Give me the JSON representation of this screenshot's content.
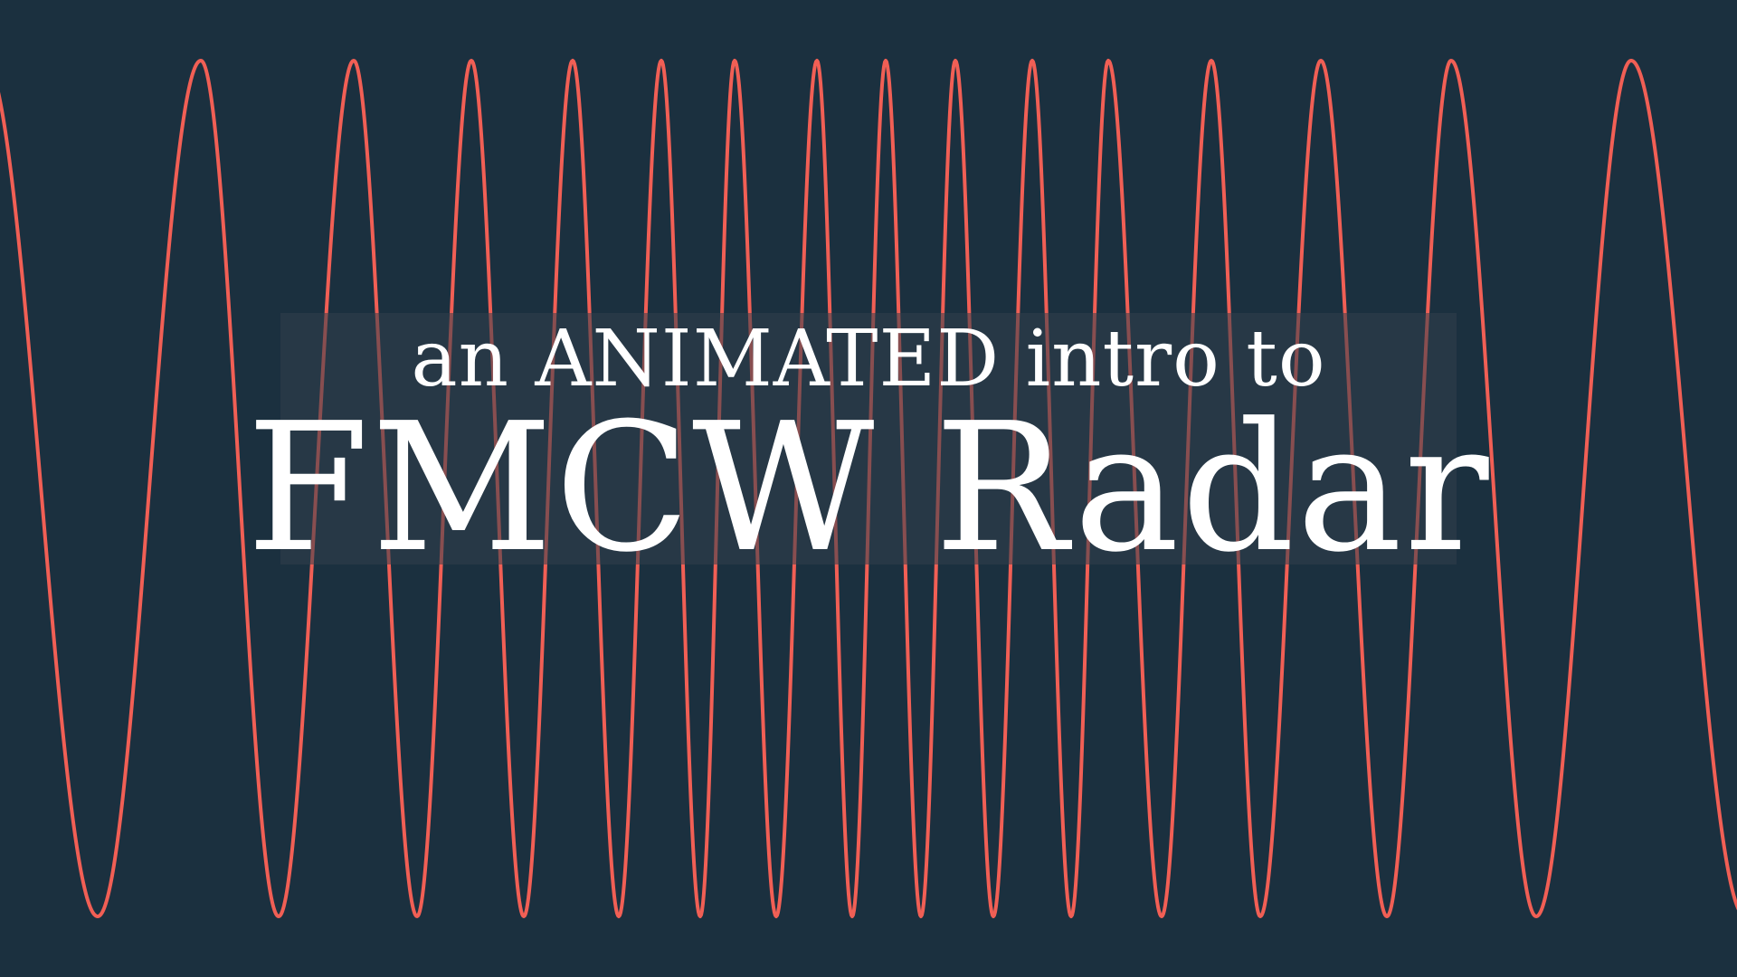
{
  "title": {
    "subtitle": "an ANIMATED intro to",
    "main": "FMCW Radar"
  },
  "colors": {
    "background": "#1b303f",
    "wave": "#f15f55",
    "panel": "#32404c",
    "text": "#ffffff"
  },
  "wave": {
    "type": "chirp-sine",
    "shape": "frequency rises toward the center and falls toward the edges"
  }
}
